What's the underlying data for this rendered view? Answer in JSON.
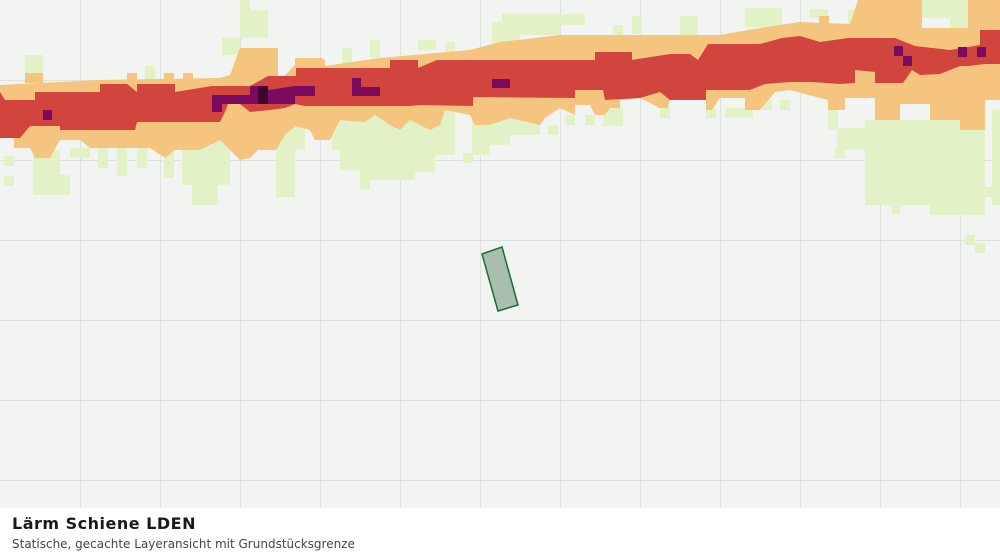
{
  "title": "Lärm Schiene LDEN",
  "subtitle": "Statische, gecachte Layeransicht mit Grundstücksgrenze"
}
